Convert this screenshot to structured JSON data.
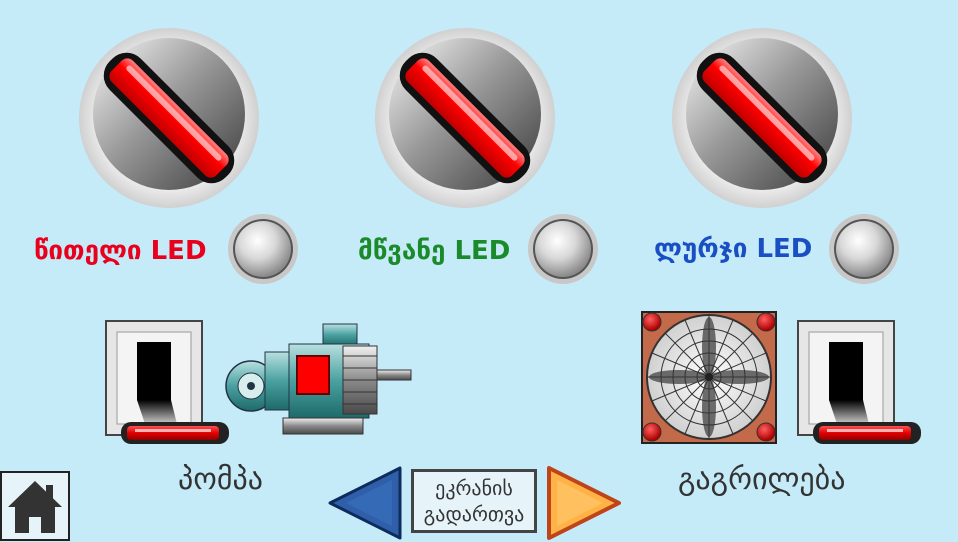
{
  "indicators": [
    {
      "label": "წითელი LED",
      "color": "#e8001c"
    },
    {
      "label": "მწვანე LED",
      "color": "#1a8a2a"
    },
    {
      "label": "ლურჯი LED",
      "color": "#1a4fc4"
    }
  ],
  "pump": {
    "label": "პომპა"
  },
  "fan": {
    "label": "გაგრილება"
  },
  "nav": {
    "switch_label_line1": "ეკრანის",
    "switch_label_line2": "გადართვა"
  },
  "colors": {
    "background": "#c6ebf8",
    "knob_red": "#ff0000",
    "prev_arrow": "#2e5fa8",
    "next_arrow": "#ffb347"
  }
}
